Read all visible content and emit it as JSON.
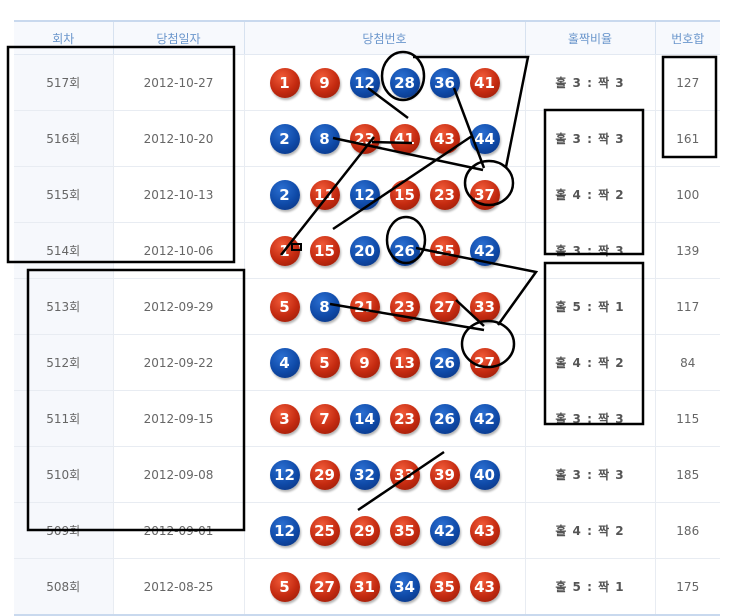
{
  "headers": {
    "round": "회차",
    "date": "당첨일자",
    "numbers": "당첨번호",
    "ratio": "홀짝비율",
    "sum": "번호합"
  },
  "colors": {
    "odd_ball": "#c42a10",
    "even_ball": "#0f4aa8",
    "header_text": "#6b96cc",
    "annotation": "#000000"
  },
  "rows": [
    {
      "round": "517회",
      "date": "2012-10-27",
      "numbers": [
        1,
        9,
        12,
        28,
        36,
        41
      ],
      "ratio": "홀 3 : 짝 3",
      "sum": "127"
    },
    {
      "round": "516회",
      "date": "2012-10-20",
      "numbers": [
        2,
        8,
        23,
        41,
        43,
        44
      ],
      "ratio": "홀 3 : 짝 3",
      "sum": "161"
    },
    {
      "round": "515회",
      "date": "2012-10-13",
      "numbers": [
        2,
        11,
        12,
        15,
        23,
        37
      ],
      "ratio": "홀 4 : 짝 2",
      "sum": "100"
    },
    {
      "round": "514회",
      "date": "2012-10-06",
      "numbers": [
        1,
        15,
        20,
        26,
        35,
        42
      ],
      "ratio": "홀 3 : 짝 3",
      "sum": "139"
    },
    {
      "round": "513회",
      "date": "2012-09-29",
      "numbers": [
        5,
        8,
        21,
        23,
        27,
        33
      ],
      "ratio": "홀 5 : 짝 1",
      "sum": "117"
    },
    {
      "round": "512회",
      "date": "2012-09-22",
      "numbers": [
        4,
        5,
        9,
        13,
        26,
        27
      ],
      "ratio": "홀 4 : 짝 2",
      "sum": "84"
    },
    {
      "round": "511회",
      "date": "2012-09-15",
      "numbers": [
        3,
        7,
        14,
        23,
        26,
        42
      ],
      "ratio": "홀 3 : 짝 3",
      "sum": "115"
    },
    {
      "round": "510회",
      "date": "2012-09-08",
      "numbers": [
        12,
        29,
        32,
        33,
        39,
        40
      ],
      "ratio": "홀 3 : 짝 3",
      "sum": "185"
    },
    {
      "round": "509회",
      "date": "2012-09-01",
      "numbers": [
        12,
        25,
        29,
        35,
        42,
        43
      ],
      "ratio": "홀 4 : 짝 2",
      "sum": "186"
    },
    {
      "round": "508회",
      "date": "2012-08-25",
      "numbers": [
        5,
        27,
        31,
        34,
        35,
        43
      ],
      "ratio": "홀 5 : 짝 1",
      "sum": "175"
    }
  ]
}
